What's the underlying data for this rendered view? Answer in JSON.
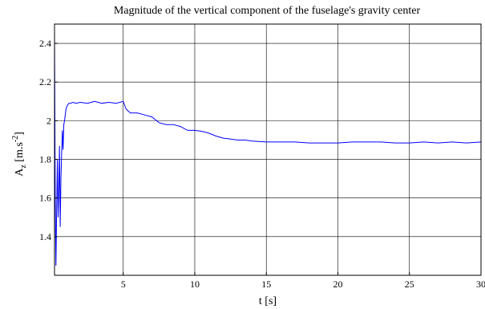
{
  "chart_data": {
    "type": "line",
    "title": "Magnitude of the vertical component of the fuselage's gravity center",
    "xlabel": "t [s]",
    "ylabel": {
      "base": "A",
      "sub": "z",
      "unit_prefix": " [m.s",
      "sup": "-2",
      "unit_suffix": "]"
    },
    "xlim": [
      0.2,
      30
    ],
    "ylim": [
      1.2,
      2.5
    ],
    "xticks": [
      5,
      10,
      15,
      20,
      25,
      30
    ],
    "yticks": [
      1.4,
      1.6,
      1.8,
      2.0,
      2.2,
      2.4
    ],
    "ytick_labels": [
      "1.4",
      "1.6",
      "1.8",
      "2",
      "2.2",
      "2.4"
    ],
    "grid": true,
    "series": [
      {
        "color": "#0000ff",
        "x": [
          0.2,
          0.25,
          0.3,
          0.35,
          0.4,
          0.45,
          0.5,
          0.55,
          0.6,
          0.65,
          0.7,
          0.75,
          0.8,
          0.85,
          0.9,
          0.95,
          1.0,
          1.1,
          1.2,
          1.3,
          1.5,
          1.7,
          2.0,
          2.5,
          3.0,
          3.5,
          4.0,
          4.5,
          5.0,
          5.2,
          5.5,
          6.0,
          6.5,
          7.0,
          7.5,
          8.0,
          8.5,
          9.0,
          9.5,
          10.0,
          10.5,
          11.0,
          11.5,
          12.0,
          12.5,
          13.0,
          13.5,
          14.0,
          15.0,
          16.0,
          17.0,
          18.0,
          19.0,
          20.0,
          21.0,
          22.0,
          23.0,
          24.0,
          25.0,
          26.0,
          27.0,
          28.0,
          29.0,
          30.0
        ],
        "y": [
          2.45,
          1.6,
          1.25,
          1.55,
          1.8,
          1.5,
          1.65,
          1.87,
          1.45,
          1.7,
          1.83,
          1.95,
          1.85,
          1.98,
          2.0,
          2.03,
          2.06,
          2.08,
          2.09,
          2.09,
          2.095,
          2.09,
          2.095,
          2.09,
          2.1,
          2.09,
          2.095,
          2.09,
          2.1,
          2.06,
          2.04,
          2.04,
          2.03,
          2.02,
          1.99,
          1.98,
          1.98,
          1.97,
          1.95,
          1.95,
          1.945,
          1.935,
          1.92,
          1.91,
          1.905,
          1.9,
          1.9,
          1.895,
          1.89,
          1.89,
          1.89,
          1.885,
          1.885,
          1.885,
          1.89,
          1.89,
          1.89,
          1.885,
          1.885,
          1.89,
          1.885,
          1.89,
          1.885,
          1.89
        ]
      }
    ]
  }
}
